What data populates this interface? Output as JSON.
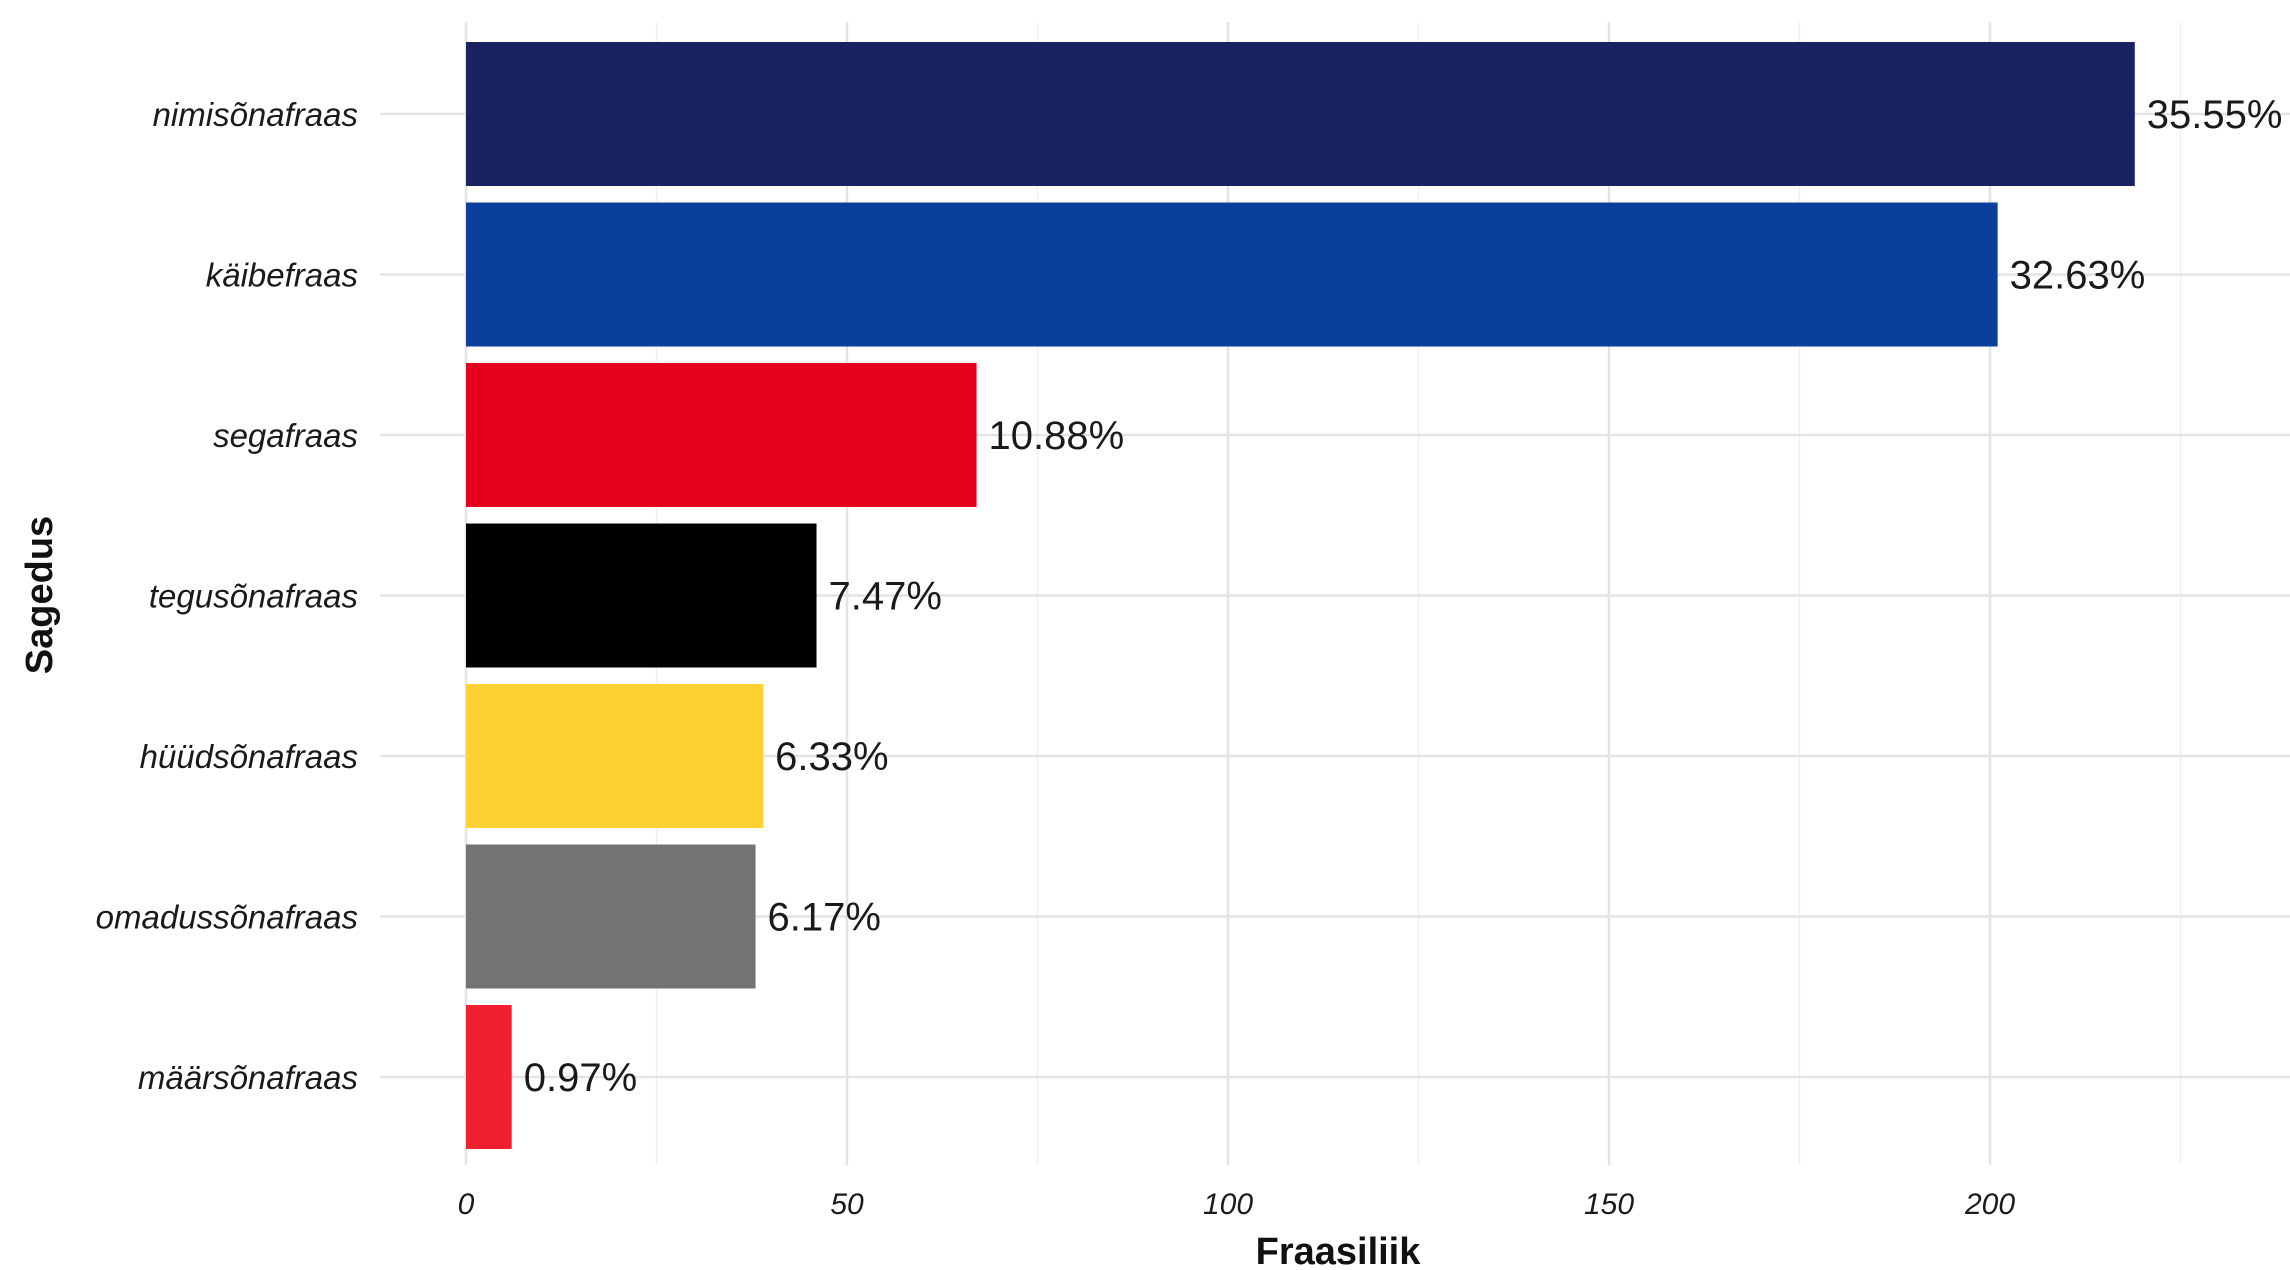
{
  "chart_data": {
    "type": "bar",
    "orientation": "horizontal",
    "categories": [
      "nimisõnafraas",
      "käibefraas",
      "segafraas",
      "tegusõnafraas",
      "hüüdsõnafraas",
      "omadussõnafraas",
      "määrsõnafraas"
    ],
    "values": [
      219,
      201,
      67,
      46,
      39,
      38,
      6
    ],
    "data_labels": [
      "35.55%",
      "32.63%",
      "10.88%",
      "7.47%",
      "6.33%",
      "6.17%",
      "0.97%"
    ],
    "colors": [
      "#1b2262",
      "#0a3f9c",
      "#e6001e",
      "#000000",
      "#fdd232",
      "#737373",
      "#f0202e"
    ],
    "xlabel": "Fraasiliik",
    "ylabel": "Sagedus",
    "xlim": [
      0,
      230
    ],
    "x_ticks": [
      0,
      50,
      100,
      150,
      200
    ],
    "x_tick_labels": [
      "0",
      "50",
      "100",
      "150",
      "200"
    ],
    "grid": true,
    "legend": "none"
  }
}
